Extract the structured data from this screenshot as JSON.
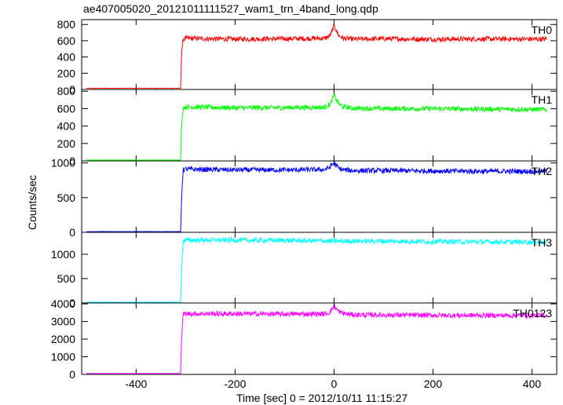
{
  "chart_data": {
    "type": "line",
    "title": "ae407005020_20121011111527_wam1_trn_4band_long.qdp",
    "xlabel": "Time [sec] 0 = 2012/10/11 11:15:27",
    "ylabel": "Counts/sec",
    "xlim": [
      -510,
      450
    ],
    "xticks": [
      -400,
      -200,
      0,
      200,
      400
    ],
    "grid": false,
    "series": [
      {
        "name": "TH0",
        "color": "#ff0000",
        "ylim": [
          0,
          860
        ],
        "yticks": [
          0,
          200,
          400,
          600,
          800
        ],
        "x": [
          -500,
          -310,
          -308,
          -305,
          -300,
          -200,
          -100,
          -20,
          -10,
          -5,
          0,
          5,
          10,
          20,
          40,
          100,
          200,
          300,
          430
        ],
        "y": [
          15,
          15,
          460,
          620,
          630,
          620,
          625,
          630,
          650,
          700,
          790,
          720,
          660,
          630,
          620,
          625,
          618,
          622,
          620
        ]
      },
      {
        "name": "TH1",
        "color": "#00ff00",
        "ylim": [
          0,
          820
        ],
        "yticks": [
          0,
          200,
          400,
          600,
          800
        ],
        "x": [
          -500,
          -310,
          -308,
          -305,
          -300,
          -200,
          -100,
          -20,
          -10,
          -5,
          0,
          5,
          10,
          20,
          40,
          100,
          200,
          300,
          430
        ],
        "y": [
          10,
          10,
          400,
          610,
          620,
          610,
          612,
          615,
          640,
          680,
          760,
          700,
          650,
          620,
          605,
          600,
          600,
          595,
          590
        ]
      },
      {
        "name": "TH2",
        "color": "#0000ff",
        "ylim": [
          0,
          1030
        ],
        "yticks": [
          0,
          500,
          1000
        ],
        "x": [
          -500,
          -310,
          -308,
          -305,
          -300,
          -200,
          -100,
          -20,
          -10,
          -5,
          0,
          5,
          10,
          20,
          40,
          100,
          200,
          300,
          430
        ],
        "y": [
          10,
          10,
          500,
          900,
          910,
          900,
          900,
          905,
          930,
          970,
          1000,
          960,
          920,
          900,
          890,
          890,
          885,
          880,
          880
        ]
      },
      {
        "name": "TH3",
        "color": "#00ffff",
        "ylim": [
          0,
          1450
        ],
        "yticks": [
          0,
          500,
          1000
        ],
        "x": [
          -500,
          -310,
          -308,
          -305,
          -300,
          -200,
          -100,
          0,
          100,
          200,
          300,
          430
        ],
        "y": [
          15,
          15,
          700,
          1280,
          1290,
          1290,
          1285,
          1270,
          1270,
          1260,
          1255,
          1250
        ]
      },
      {
        "name": "TH0123",
        "color": "#ff00ff",
        "ylim": [
          0,
          4050
        ],
        "yticks": [
          0,
          1000,
          2000,
          3000,
          4000
        ],
        "x": [
          -500,
          -310,
          -308,
          -305,
          -300,
          -200,
          -100,
          -20,
          -10,
          -5,
          0,
          5,
          10,
          20,
          40,
          100,
          200,
          300,
          430
        ],
        "y": [
          50,
          50,
          2000,
          3420,
          3440,
          3440,
          3420,
          3430,
          3500,
          3650,
          3900,
          3700,
          3550,
          3450,
          3380,
          3370,
          3350,
          3345,
          3340
        ]
      }
    ]
  }
}
